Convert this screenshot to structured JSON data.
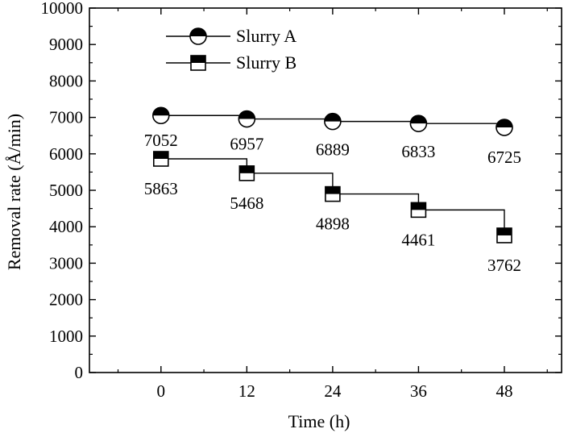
{
  "chart_data": {
    "type": "line",
    "xlabel": "Time (h)",
    "ylabel": "Removal rate (Å/min)",
    "xlim": [
      -10,
      56
    ],
    "ylim": [
      0,
      10000
    ],
    "x_ticks": [
      0,
      12,
      24,
      36,
      48
    ],
    "y_ticks": [
      0,
      1000,
      2000,
      3000,
      4000,
      5000,
      6000,
      7000,
      8000,
      9000,
      10000
    ],
    "legend_position": "top-left",
    "line_style": "step",
    "series": [
      {
        "name": "Slurry A",
        "marker": "half-filled-circle",
        "x": [
          0,
          12,
          24,
          36,
          48
        ],
        "values": [
          7052,
          6957,
          6889,
          6833,
          6725
        ],
        "labels": [
          "7052",
          "6957",
          "6889",
          "6833",
          "6725"
        ]
      },
      {
        "name": "Slurry B",
        "marker": "half-filled-square",
        "x": [
          0,
          12,
          24,
          36,
          48
        ],
        "values": [
          5863,
          5468,
          4898,
          4461,
          3762
        ],
        "labels": [
          "5863",
          "5468",
          "4898",
          "4461",
          "3762"
        ]
      }
    ]
  }
}
